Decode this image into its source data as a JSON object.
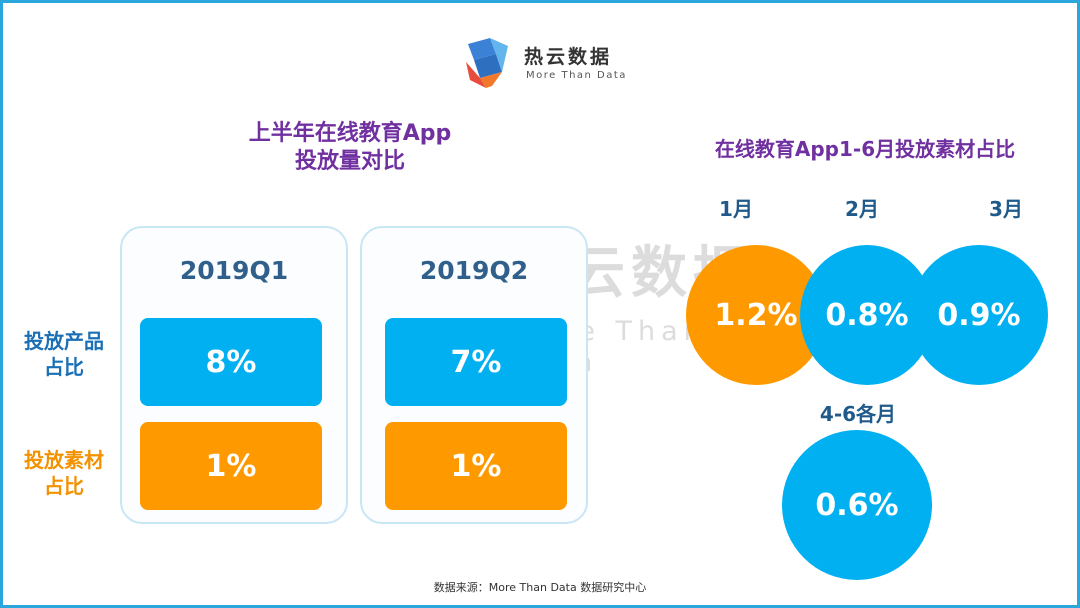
{
  "brand": {
    "name": "热云数据",
    "tagline": "More Than Data"
  },
  "left_title_line1": "上半年在线教育App",
  "left_title_line2": "投放量对比",
  "right_title": "在线教育App1-6月投放素材占比",
  "row_labels": {
    "product_line1": "投放产品",
    "product_line2": "占比",
    "material_line1": "投放素材",
    "material_line2": "占比"
  },
  "chart_data": [
    {
      "type": "table",
      "title": "上半年在线教育App投放量对比",
      "categories": [
        "2019Q1",
        "2019Q2"
      ],
      "series": [
        {
          "name": "投放产品占比",
          "values": [
            8,
            7
          ],
          "labels": [
            "8%",
            "7%"
          ],
          "color": "#00b0f0"
        },
        {
          "name": "投放素材占比",
          "values": [
            1,
            1
          ],
          "labels": [
            "1%",
            "1%"
          ],
          "color": "#ff9900"
        }
      ]
    },
    {
      "type": "scatter",
      "title": "在线教育App1-6月投放素材占比",
      "categories": [
        "1月",
        "2月",
        "3月",
        "4-6各月"
      ],
      "values": [
        1.2,
        0.8,
        0.9,
        0.6
      ],
      "labels": [
        "1.2%",
        "0.8%",
        "0.9%",
        "0.6%"
      ],
      "colors": [
        "#ff9900",
        "#00b0f0",
        "#00b0f0",
        "#00b0f0"
      ]
    }
  ],
  "footer": "数据来源：More Than Data 数据研究中心"
}
